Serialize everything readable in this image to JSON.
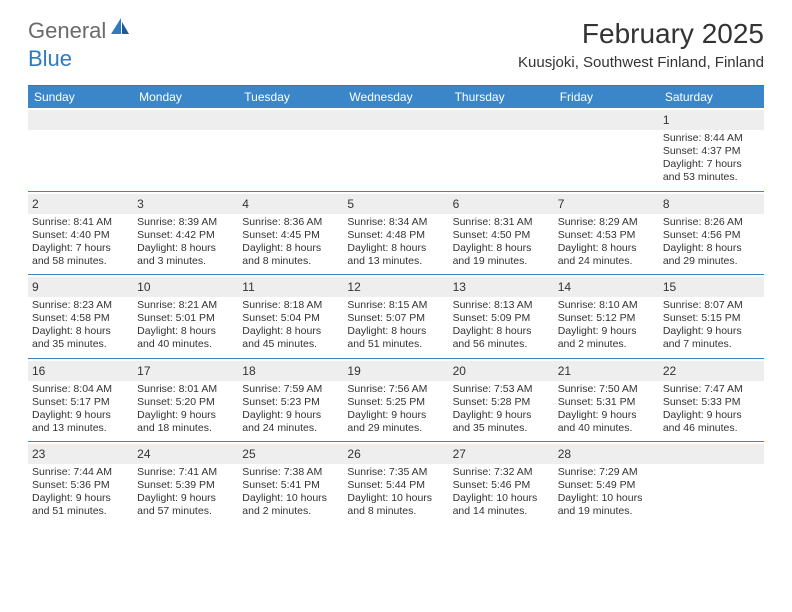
{
  "brand": {
    "general": "General",
    "blue": "Blue"
  },
  "title": "February 2025",
  "location": "Kuusjoki, Southwest Finland, Finland",
  "colors": {
    "header_bg": "#3b86c8",
    "border": "#3b86c8",
    "daynum_bg": "#eeeeee",
    "text": "#333333",
    "logo_gray": "#6a6a6a",
    "logo_blue": "#2f7ac0"
  },
  "dayNames": [
    "Sunday",
    "Monday",
    "Tuesday",
    "Wednesday",
    "Thursday",
    "Friday",
    "Saturday"
  ],
  "weeks": [
    [
      null,
      null,
      null,
      null,
      null,
      null,
      {
        "d": "1",
        "sr": "8:44 AM",
        "ss": "4:37 PM",
        "dl": "7 hours and 53 minutes."
      }
    ],
    [
      {
        "d": "2",
        "sr": "8:41 AM",
        "ss": "4:40 PM",
        "dl": "7 hours and 58 minutes."
      },
      {
        "d": "3",
        "sr": "8:39 AM",
        "ss": "4:42 PM",
        "dl": "8 hours and 3 minutes."
      },
      {
        "d": "4",
        "sr": "8:36 AM",
        "ss": "4:45 PM",
        "dl": "8 hours and 8 minutes."
      },
      {
        "d": "5",
        "sr": "8:34 AM",
        "ss": "4:48 PM",
        "dl": "8 hours and 13 minutes."
      },
      {
        "d": "6",
        "sr": "8:31 AM",
        "ss": "4:50 PM",
        "dl": "8 hours and 19 minutes."
      },
      {
        "d": "7",
        "sr": "8:29 AM",
        "ss": "4:53 PM",
        "dl": "8 hours and 24 minutes."
      },
      {
        "d": "8",
        "sr": "8:26 AM",
        "ss": "4:56 PM",
        "dl": "8 hours and 29 minutes."
      }
    ],
    [
      {
        "d": "9",
        "sr": "8:23 AM",
        "ss": "4:58 PM",
        "dl": "8 hours and 35 minutes."
      },
      {
        "d": "10",
        "sr": "8:21 AM",
        "ss": "5:01 PM",
        "dl": "8 hours and 40 minutes."
      },
      {
        "d": "11",
        "sr": "8:18 AM",
        "ss": "5:04 PM",
        "dl": "8 hours and 45 minutes."
      },
      {
        "d": "12",
        "sr": "8:15 AM",
        "ss": "5:07 PM",
        "dl": "8 hours and 51 minutes."
      },
      {
        "d": "13",
        "sr": "8:13 AM",
        "ss": "5:09 PM",
        "dl": "8 hours and 56 minutes."
      },
      {
        "d": "14",
        "sr": "8:10 AM",
        "ss": "5:12 PM",
        "dl": "9 hours and 2 minutes."
      },
      {
        "d": "15",
        "sr": "8:07 AM",
        "ss": "5:15 PM",
        "dl": "9 hours and 7 minutes."
      }
    ],
    [
      {
        "d": "16",
        "sr": "8:04 AM",
        "ss": "5:17 PM",
        "dl": "9 hours and 13 minutes."
      },
      {
        "d": "17",
        "sr": "8:01 AM",
        "ss": "5:20 PM",
        "dl": "9 hours and 18 minutes."
      },
      {
        "d": "18",
        "sr": "7:59 AM",
        "ss": "5:23 PM",
        "dl": "9 hours and 24 minutes."
      },
      {
        "d": "19",
        "sr": "7:56 AM",
        "ss": "5:25 PM",
        "dl": "9 hours and 29 minutes."
      },
      {
        "d": "20",
        "sr": "7:53 AM",
        "ss": "5:28 PM",
        "dl": "9 hours and 35 minutes."
      },
      {
        "d": "21",
        "sr": "7:50 AM",
        "ss": "5:31 PM",
        "dl": "9 hours and 40 minutes."
      },
      {
        "d": "22",
        "sr": "7:47 AM",
        "ss": "5:33 PM",
        "dl": "9 hours and 46 minutes."
      }
    ],
    [
      {
        "d": "23",
        "sr": "7:44 AM",
        "ss": "5:36 PM",
        "dl": "9 hours and 51 minutes."
      },
      {
        "d": "24",
        "sr": "7:41 AM",
        "ss": "5:39 PM",
        "dl": "9 hours and 57 minutes."
      },
      {
        "d": "25",
        "sr": "7:38 AM",
        "ss": "5:41 PM",
        "dl": "10 hours and 2 minutes."
      },
      {
        "d": "26",
        "sr": "7:35 AM",
        "ss": "5:44 PM",
        "dl": "10 hours and 8 minutes."
      },
      {
        "d": "27",
        "sr": "7:32 AM",
        "ss": "5:46 PM",
        "dl": "10 hours and 14 minutes."
      },
      {
        "d": "28",
        "sr": "7:29 AM",
        "ss": "5:49 PM",
        "dl": "10 hours and 19 minutes."
      },
      null
    ]
  ],
  "labels": {
    "sunrise": "Sunrise: ",
    "sunset": "Sunset: ",
    "daylight": "Daylight: "
  }
}
